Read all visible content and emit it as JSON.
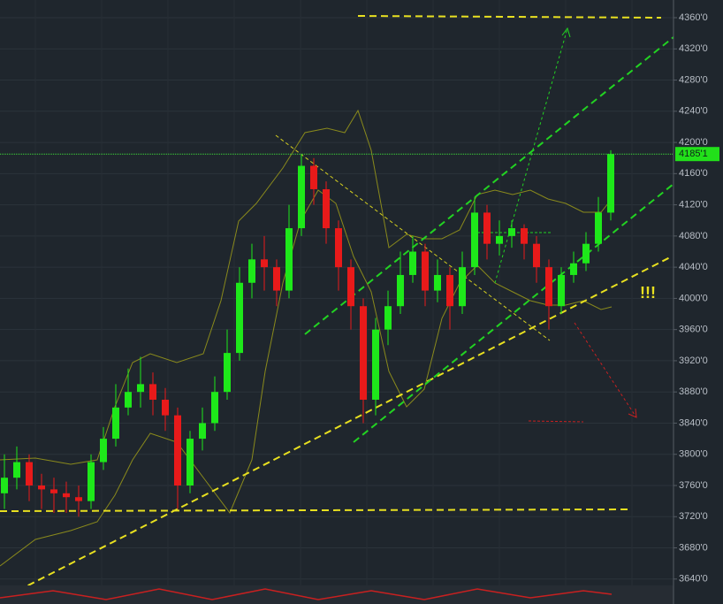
{
  "chart_data": {
    "type": "candlestick",
    "open": [
      3750,
      3770,
      3790,
      3760,
      3755,
      3750,
      3745,
      3740,
      3790,
      3820,
      3860,
      3880,
      3890,
      3870,
      3850,
      3760,
      3820,
      3840,
      3880,
      3930,
      4020,
      4050,
      4040,
      4010,
      4090,
      4170,
      4140,
      4090,
      4040,
      3990,
      3870,
      3960,
      3990,
      4030,
      4060,
      4010,
      4030,
      3990,
      4040,
      4110,
      4070,
      4080,
      4090,
      4070,
      4040,
      3990,
      4030,
      4045,
      4070,
      4110
    ],
    "high": [
      3800,
      3810,
      3800,
      3775,
      3770,
      3765,
      3760,
      3800,
      3835,
      3890,
      3910,
      3925,
      3905,
      3885,
      3860,
      3830,
      3860,
      3900,
      3960,
      4040,
      4070,
      4080,
      4050,
      4120,
      4185,
      4180,
      4150,
      4100,
      4050,
      4000,
      3975,
      4010,
      4060,
      4080,
      4070,
      4050,
      4040,
      4060,
      4130,
      4120,
      4100,
      4100,
      4095,
      4080,
      4050,
      4040,
      4060,
      4085,
      4130,
      4190
    ],
    "low": [
      3730,
      3755,
      3740,
      3730,
      3725,
      3725,
      3720,
      3730,
      3780,
      3810,
      3850,
      3860,
      3850,
      3830,
      3730,
      3750,
      3805,
      3830,
      3870,
      3920,
      4000,
      4010,
      3990,
      4000,
      4080,
      4120,
      4070,
      4010,
      3960,
      3840,
      3850,
      3940,
      3980,
      4020,
      3990,
      3995,
      3960,
      3980,
      4030,
      4050,
      4055,
      4065,
      4050,
      4020,
      3960,
      3980,
      4020,
      4035,
      4060,
      4100
    ],
    "close": [
      3770,
      3790,
      3760,
      3755,
      3750,
      3745,
      3740,
      3790,
      3820,
      3860,
      3880,
      3890,
      3870,
      3850,
      3760,
      3820,
      3840,
      3880,
      3930,
      4020,
      4050,
      4040,
      4010,
      4090,
      4170,
      4140,
      4090,
      4040,
      3990,
      3870,
      3960,
      3990,
      4030,
      4060,
      4010,
      4030,
      3990,
      4040,
      4110,
      4070,
      4080,
      4090,
      4070,
      4040,
      3990,
      4030,
      4045,
      4070,
      4110,
      4185.1
    ],
    "up_color": "#1ee81a",
    "down_color": "#e81a1a",
    "ylim": [
      3608,
      4382.7
    ],
    "yticks": [
      {
        "value": 3640,
        "label": "3640'0"
      },
      {
        "value": 3680,
        "label": "3680'0"
      },
      {
        "value": 3720,
        "label": "3720'0"
      },
      {
        "value": 3760,
        "label": "3760'0"
      },
      {
        "value": 3800,
        "label": "3800'0"
      },
      {
        "value": 3840,
        "label": "3840'0"
      },
      {
        "value": 3880,
        "label": "3880'0"
      },
      {
        "value": 3920,
        "label": "3920'0"
      },
      {
        "value": 3960,
        "label": "3960'0"
      },
      {
        "value": 4000,
        "label": "4000'0"
      },
      {
        "value": 4040,
        "label": "4040'0"
      },
      {
        "value": 4080,
        "label": "4080'0"
      },
      {
        "value": 4120,
        "label": "4120'0"
      },
      {
        "value": 4160,
        "label": "4160'0"
      },
      {
        "value": 4200,
        "label": "4200'0"
      },
      {
        "value": 4240,
        "label": "4240'0"
      },
      {
        "value": 4280,
        "label": "4280'0"
      },
      {
        "value": 4320,
        "label": "4320'0"
      },
      {
        "value": 4360,
        "label": "4360'0"
      }
    ],
    "grid": true,
    "last_price": {
      "value": 4185.1,
      "label": "4185'1"
    },
    "annotation": "!!!"
  }
}
